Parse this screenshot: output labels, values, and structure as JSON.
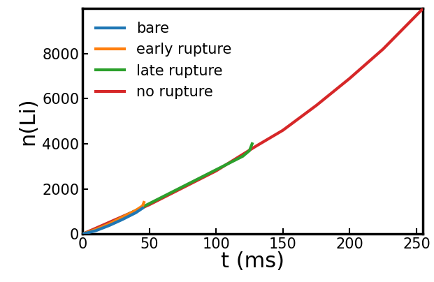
{
  "chart_data": {
    "type": "line",
    "x_label": "t (ms)",
    "y_label": "n(Li)",
    "xlim": [
      0,
      255
    ],
    "ylim": [
      0,
      10000
    ],
    "xticks": [
      0,
      50,
      100,
      150,
      200,
      250
    ],
    "yticks": [
      0,
      2000,
      4000,
      6000,
      8000
    ],
    "legend": "upper left",
    "series": [
      {
        "name": "bare",
        "color": "#1f77b4",
        "x": [
          0,
          10,
          20,
          30,
          40,
          45
        ],
        "values": [
          0,
          150,
          380,
          650,
          950,
          1150
        ]
      },
      {
        "name": "early rupture",
        "color": "#ff7f0e",
        "x": [
          0,
          10,
          20,
          30,
          40,
          45,
          46
        ],
        "values": [
          0,
          200,
          450,
          750,
          1050,
          1250,
          1400
        ]
      },
      {
        "name": "late rupture",
        "color": "#2ca02c",
        "x": [
          0,
          10,
          20,
          30,
          40,
          50,
          60,
          70,
          80,
          90,
          100,
          110,
          120,
          125,
          127
        ],
        "values": [
          0,
          200,
          450,
          750,
          1050,
          1350,
          1650,
          1950,
          2250,
          2550,
          2850,
          3150,
          3450,
          3700,
          4000
        ]
      },
      {
        "name": "no rupture",
        "color": "#d62728",
        "x": [
          0,
          50,
          100,
          130,
          150,
          175,
          200,
          225,
          250,
          255
        ],
        "values": [
          0,
          1300,
          2800,
          3900,
          4600,
          5700,
          6900,
          8200,
          9700,
          10000
        ]
      }
    ]
  }
}
